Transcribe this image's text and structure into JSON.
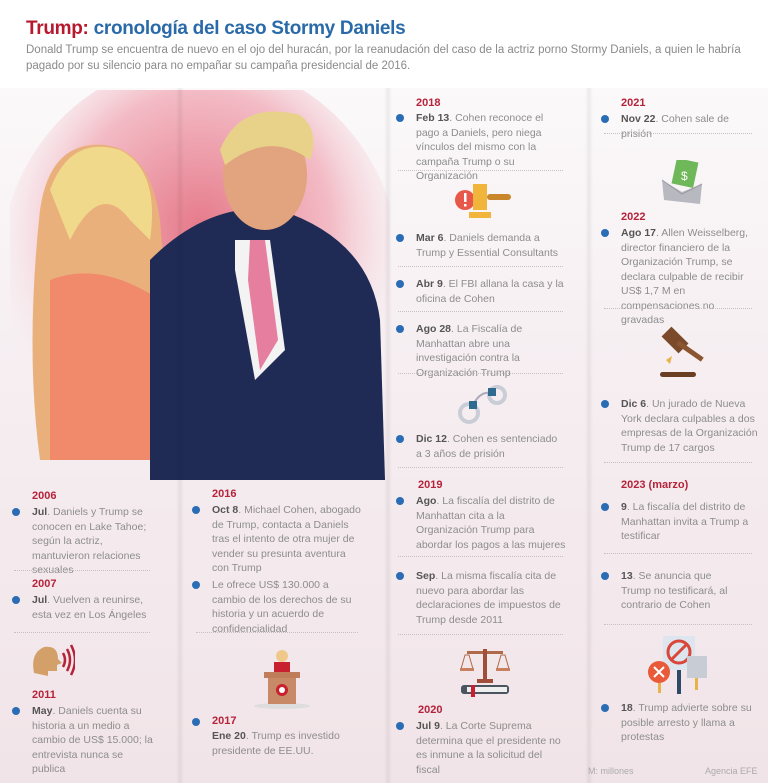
{
  "header": {
    "title_red": "Trump:",
    "title_blue": "cronología del caso Stormy Daniels",
    "subtitle": "Donald Trump se encuentra de nuevo en el ojo del huracán, por la reanudación del caso de la actriz porno Stormy Daniels, a quien le habría pagado por su silencio para no empañar su campaña presidencial de 2016."
  },
  "col1": {
    "y2006": "2006",
    "e1": {
      "label": "Jul",
      "text": ". Daniels y Trump se conocen en Lake Tahoe; según la actriz, mantuvieron relaciones sexuales"
    },
    "y2007": "2007",
    "e2": {
      "label": "Jul",
      "text": ". Vuelven a reunirse, esta vez en Los Ángeles"
    },
    "y2011": "2011",
    "e3": {
      "label": "May",
      "text": ". Daniels cuenta su historia a un medio a cambio de US$ 15.000; la entrevista nunca se publica"
    }
  },
  "col2": {
    "y2016": "2016",
    "e1": {
      "label": "Oct 8",
      "text": ". Michael Cohen, abogado de Trump, contacta a Daniels tras el intento de otra mujer de vender su presunta aventura con Trump"
    },
    "e2": {
      "label": "",
      "text": "Le ofrece US$ 130.000 a cambio de los derechos de su historia y un acuerdo de confidencialidad"
    },
    "y2017": "2017",
    "e3": {
      "label": "Ene 20",
      "text": ". Trump es investido presidente de EE.UU."
    }
  },
  "col3": {
    "y2018": "2018",
    "e1": {
      "label": "Feb 13",
      "text": ". Cohen reconoce el pago a Daniels, pero niega vínculos del mismo con la campaña Trump o su Organización"
    },
    "e2": {
      "label": "Mar 6",
      "text": ". Daniels demanda a Trump y Essential Consultants"
    },
    "e3": {
      "label": "Abr 9",
      "text": ". El FBI allana la casa y la oficina de Cohen"
    },
    "e4": {
      "label": "Ago 28",
      "text": ". La Fiscalía de Manhattan abre una investigación contra la Organización Trump"
    },
    "e5": {
      "label": "Dic 12",
      "text": ". Cohen es sentenciado a 3 años de prisión"
    },
    "y2019": "2019",
    "e6": {
      "label": "Ago",
      "text": ". La fiscalía del distrito de Manhattan cita a la Organización Trump para abordar los pagos a las mujeres"
    },
    "e7": {
      "label": "Sep",
      "text": ". La misma fiscalía cita de nuevo para abordar las declaraciones de impuestos de Trump desde 2011"
    },
    "y2020": "2020",
    "e8": {
      "label": "Jul 9",
      "text": ". La Corte Suprema determina que el presidente no es inmune a la solicitud del fiscal"
    }
  },
  "col4": {
    "y2021": "2021",
    "e1": {
      "label": "Nov 22",
      "text": ". Cohen sale de prisión"
    },
    "y2022": "2022",
    "e2": {
      "label": "Ago 17",
      "text": ". Allen Weisselberg, director financiero de la Organización Trump, se declara culpable de recibir US$ 1,7 M en compensaciones no gravadas"
    },
    "e3": {
      "label": "Dic 6",
      "text": ". Un jurado de Nueva York declara culpables a dos empresas de la Organización Trump de 17 cargos"
    },
    "y2023": "2023 (marzo)",
    "e4": {
      "label": "9",
      "text": ". La fiscalía del distrito de Manhattan invita a Trump a testificar"
    },
    "e5": {
      "label": "13",
      "text": ". Se anuncia que Trump no testificará, al contrario de Cohen"
    },
    "e6": {
      "label": "18",
      "text": ". Trump advierte sobre su posible arresto y llama a protestas"
    }
  },
  "footer": {
    "note": "M: millones",
    "source": "Agencia EFE"
  },
  "colors": {
    "year": "#b5223a",
    "bullet": "#2a6db5",
    "title_red": "#b8182e",
    "title_blue": "#2a6aa8"
  }
}
